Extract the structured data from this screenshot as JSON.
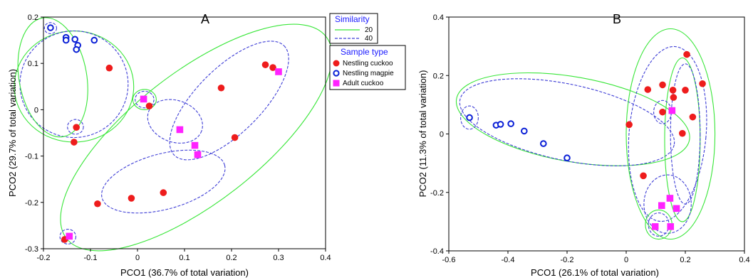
{
  "colors": {
    "nestling_cuckoo": "#ee1c1c",
    "nestling_magpie": "#0a1fd6",
    "adult_cuckoo": "#ff22ff",
    "similarity_20": "#39e639",
    "similarity_40": "#3f3fd6",
    "legend_heading": "#1a1aff"
  },
  "legend": {
    "similarity_title": "Similarity",
    "similarity_items": [
      {
        "label": "20",
        "line": "solid",
        "color": "#39e639"
      },
      {
        "label": "40",
        "line": "dashed",
        "color": "#3f3fd6"
      }
    ],
    "sample_title": "Sample type",
    "sample_items": [
      {
        "label": "Nestling cuckoo",
        "marker": "filled-circle",
        "color": "#ee1c1c"
      },
      {
        "label": "Nestling magpie",
        "marker": "open-circle",
        "color": "#0a1fd6"
      },
      {
        "label": "Adult cuckoo",
        "marker": "filled-square",
        "color": "#ff22ff"
      }
    ]
  },
  "chart_data": [
    {
      "type": "scatter",
      "title": "A",
      "xlabel": "PCO1 (36.7% of total variation)",
      "ylabel": "PCO2 (29.7% of total variation)",
      "xlim": [
        -0.2,
        0.4
      ],
      "ylim": [
        -0.3,
        0.2
      ],
      "xticks": [
        "-0.2",
        "-0.1",
        "0",
        "0.1",
        "0.2",
        "0.3",
        "0.4"
      ],
      "yticks": [
        "-0.3",
        "-0.2",
        "-0.1",
        "0",
        "0.1",
        "0.2"
      ],
      "grid": false,
      "series": [
        {
          "name": "Nestling cuckoo",
          "marker": "filled-circle",
          "points": [
            [
              -0.06,
              0.09
            ],
            [
              -0.13,
              -0.038
            ],
            [
              -0.135,
              -0.07
            ],
            [
              0.025,
              0.008
            ],
            [
              0.178,
              0.047
            ],
            [
              0.272,
              0.097
            ],
            [
              0.288,
              0.091
            ],
            [
              0.207,
              -0.06
            ],
            [
              0.055,
              -0.179
            ],
            [
              -0.013,
              -0.191
            ],
            [
              -0.085,
              -0.203
            ],
            [
              -0.155,
              -0.28
            ]
          ]
        },
        {
          "name": "Nestling magpie",
          "marker": "open-circle",
          "points": [
            [
              -0.185,
              0.177
            ],
            [
              -0.152,
              0.156
            ],
            [
              -0.152,
              0.15
            ],
            [
              -0.133,
              0.152
            ],
            [
              -0.127,
              0.139
            ],
            [
              -0.13,
              0.13
            ],
            [
              -0.092,
              0.15
            ]
          ]
        },
        {
          "name": "Adult cuckoo",
          "marker": "filled-square",
          "points": [
            [
              0.3,
              0.082
            ],
            [
              0.013,
              0.023
            ],
            [
              0.09,
              -0.043
            ],
            [
              0.122,
              -0.077
            ],
            [
              0.128,
              -0.097
            ],
            [
              -0.145,
              -0.273
            ]
          ]
        }
      ],
      "similarity_contours": [
        {
          "level": 20,
          "cx": -0.135,
          "cy": 0.05,
          "rx": 0.127,
          "ry": 0.12,
          "angle": 0
        },
        {
          "level": 40,
          "cx": -0.135,
          "cy": 0.055,
          "rx": 0.115,
          "ry": 0.115,
          "angle": 0
        },
        {
          "level": 20,
          "cx": -0.18,
          "cy": 0.07,
          "rx": 0.072,
          "ry": 0.13,
          "angle": 10
        },
        {
          "level": 20,
          "cx": 0.125,
          "cy": -0.06,
          "rx": 0.35,
          "ry": 0.14,
          "angle": 38
        },
        {
          "level": 40,
          "cx": 0.195,
          "cy": 0.02,
          "rx": 0.165,
          "ry": 0.07,
          "angle": 45
        },
        {
          "level": 40,
          "cx": 0.08,
          "cy": -0.025,
          "rx": 0.06,
          "ry": 0.045,
          "angle": -20
        },
        {
          "level": 20,
          "cx": 0.015,
          "cy": 0.022,
          "rx": 0.025,
          "ry": 0.022,
          "angle": 0
        },
        {
          "level": 40,
          "cx": 0.015,
          "cy": 0.022,
          "rx": 0.02,
          "ry": 0.018,
          "angle": 0
        },
        {
          "level": 40,
          "cx": 0.055,
          "cy": -0.155,
          "rx": 0.135,
          "ry": 0.06,
          "angle": 15
        },
        {
          "level": 40,
          "cx": -0.132,
          "cy": -0.037,
          "rx": 0.017,
          "ry": 0.016,
          "angle": 0
        },
        {
          "level": 40,
          "cx": -0.185,
          "cy": 0.176,
          "rx": 0.013,
          "ry": 0.012,
          "angle": 0
        },
        {
          "level": 40,
          "cx": -0.148,
          "cy": -0.274,
          "rx": 0.017,
          "ry": 0.016,
          "angle": 0
        }
      ]
    },
    {
      "type": "scatter",
      "title": "B",
      "xlabel": "PCO1 (26.1% of total variation)",
      "ylabel": "PCO2 (11.3% of total variation)",
      "xlim": [
        -0.6,
        0.4
      ],
      "ylim": [
        -0.4,
        0.4
      ],
      "xticks": [
        "-0.6",
        "-0.4",
        "-0.2",
        "0",
        "0.2",
        "0.4"
      ],
      "yticks": [
        "-0.4",
        "-0.2",
        "0",
        "0.2",
        "0.4"
      ],
      "grid": false,
      "series": [
        {
          "name": "Nestling cuckoo",
          "marker": "filled-circle",
          "points": [
            [
              0.205,
              0.272
            ],
            [
              0.258,
              0.172
            ],
            [
              0.123,
              0.168
            ],
            [
              0.073,
              0.152
            ],
            [
              0.158,
              0.15
            ],
            [
              0.2,
              0.15
            ],
            [
              0.16,
              0.125
            ],
            [
              0.123,
              0.075
            ],
            [
              0.225,
              0.058
            ],
            [
              0.01,
              0.032
            ],
            [
              0.19,
              0.002
            ],
            [
              0.058,
              -0.143
            ]
          ]
        },
        {
          "name": "Nestling magpie",
          "marker": "open-circle",
          "points": [
            [
              -0.53,
              0.056
            ],
            [
              -0.44,
              0.03
            ],
            [
              -0.425,
              0.033
            ],
            [
              -0.39,
              0.035
            ],
            [
              -0.345,
              0.01
            ],
            [
              -0.28,
              -0.033
            ],
            [
              -0.2,
              -0.082
            ]
          ]
        },
        {
          "name": "Adult cuckoo",
          "marker": "filled-square",
          "points": [
            [
              0.155,
              0.08
            ],
            [
              0.148,
              -0.22
            ],
            [
              0.12,
              -0.245
            ],
            [
              0.17,
              -0.255
            ],
            [
              0.098,
              -0.317
            ],
            [
              0.15,
              -0.317
            ]
          ]
        }
      ],
      "similarity_contours": [
        {
          "level": 20,
          "cx": -0.18,
          "cy": 0.05,
          "rx": 0.4,
          "ry": 0.145,
          "angle": -10
        },
        {
          "level": 40,
          "cx": -0.2,
          "cy": 0.04,
          "rx": 0.37,
          "ry": 0.13,
          "angle": -12
        },
        {
          "level": 20,
          "cx": 0.15,
          "cy": 0.0,
          "rx": 0.15,
          "ry": 0.36,
          "angle": 0
        },
        {
          "level": 40,
          "cx": 0.14,
          "cy": 0.0,
          "rx": 0.13,
          "ry": 0.3,
          "angle": -5
        },
        {
          "level": 20,
          "cx": 0.19,
          "cy": -0.02,
          "rx": 0.06,
          "ry": 0.28,
          "angle": 0
        },
        {
          "level": 40,
          "cx": 0.2,
          "cy": 0.0,
          "rx": 0.05,
          "ry": 0.24,
          "angle": 0
        },
        {
          "level": 40,
          "cx": 0.14,
          "cy": -0.24,
          "rx": 0.08,
          "ry": 0.1,
          "angle": 0
        },
        {
          "level": 20,
          "cx": 0.11,
          "cy": -0.31,
          "rx": 0.045,
          "ry": 0.05,
          "angle": 0
        },
        {
          "level": 40,
          "cx": 0.11,
          "cy": -0.31,
          "rx": 0.035,
          "ry": 0.04,
          "angle": 0
        },
        {
          "level": 40,
          "cx": 0.123,
          "cy": 0.075,
          "rx": 0.03,
          "ry": 0.04,
          "angle": 0
        },
        {
          "level": 40,
          "cx": -0.53,
          "cy": 0.056,
          "rx": 0.03,
          "ry": 0.04,
          "angle": 0
        }
      ]
    }
  ]
}
